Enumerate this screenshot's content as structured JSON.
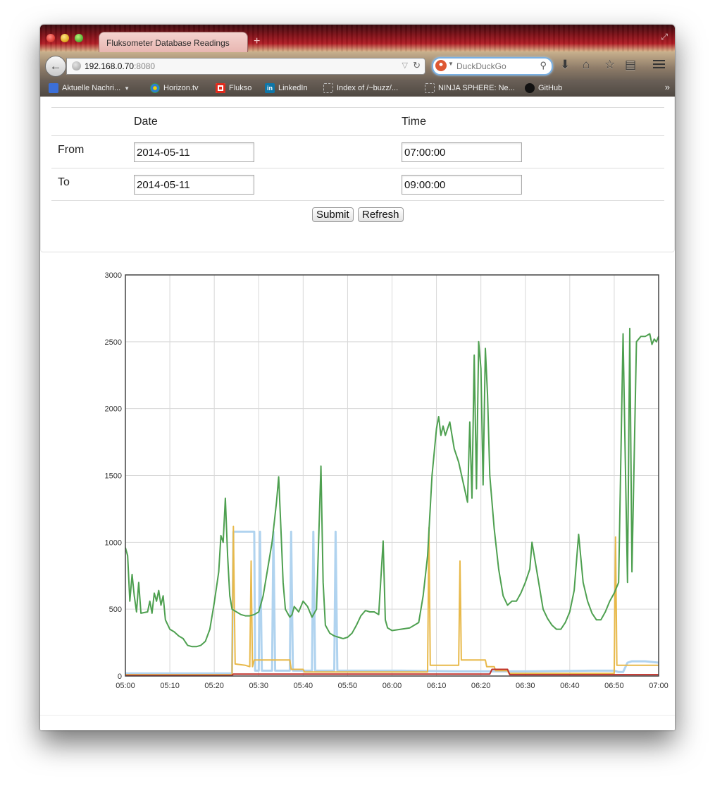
{
  "browser": {
    "tab_title": "Fluksometer Database Readings",
    "new_tab_label": "+",
    "url_host": "192.168.0.70",
    "url_port": ":8080",
    "search_placeholder": "DuckDuckGo",
    "bookmarks": [
      {
        "label": "Aktuelle Nachri...",
        "icon": "rss-icon"
      },
      {
        "label": "Horizon.tv",
        "icon": "horizon-icon"
      },
      {
        "label": "Flukso",
        "icon": "flukso-icon"
      },
      {
        "label": "LinkedIn",
        "icon": "linkedin-icon"
      },
      {
        "label": "Index of /~buzz/...",
        "icon": "page-icon"
      },
      {
        "label": "NINJA SPHERE: Ne...",
        "icon": "page-icon"
      },
      {
        "label": "GitHub",
        "icon": "github-icon"
      }
    ]
  },
  "form": {
    "col_date": "Date",
    "col_time": "Time",
    "from_label": "From",
    "to_label": "To",
    "from_date": "2014-05-11",
    "from_time": "07:00:00",
    "to_date": "2014-05-11",
    "to_time": "09:00:00",
    "submit_label": "Submit",
    "refresh_label": "Refresh"
  },
  "chart_data": {
    "type": "line",
    "title": "",
    "xlabel": "",
    "ylabel": "",
    "x_ticks": [
      "05:00",
      "05:10",
      "05:20",
      "05:30",
      "05:40",
      "05:50",
      "06:00",
      "06:10",
      "06:20",
      "06:30",
      "06:40",
      "06:50",
      "07:00"
    ],
    "y_ticks": [
      0,
      500,
      1000,
      1500,
      2000,
      2500,
      3000
    ],
    "xlim_minutes": [
      0,
      120
    ],
    "ylim": [
      0,
      3000
    ],
    "grid": true,
    "colors": {
      "green": "#4ea050",
      "blue": "#b0d3ef",
      "orange": "#e8b94a",
      "red": "#c0302a"
    },
    "series": [
      {
        "color_key": "green",
        "points": [
          [
            0,
            960
          ],
          [
            0.5,
            900
          ],
          [
            1,
            560
          ],
          [
            1.5,
            760
          ],
          [
            2,
            600
          ],
          [
            2.5,
            480
          ],
          [
            3,
            700
          ],
          [
            3.5,
            470
          ],
          [
            5,
            480
          ],
          [
            5.5,
            560
          ],
          [
            6,
            470
          ],
          [
            6.5,
            620
          ],
          [
            7,
            560
          ],
          [
            7.5,
            640
          ],
          [
            8,
            530
          ],
          [
            8.5,
            600
          ],
          [
            9,
            420
          ],
          [
            10,
            350
          ],
          [
            11,
            330
          ],
          [
            12,
            300
          ],
          [
            13,
            280
          ],
          [
            14,
            230
          ],
          [
            15,
            220
          ],
          [
            16,
            220
          ],
          [
            17,
            230
          ],
          [
            18,
            260
          ],
          [
            19,
            350
          ],
          [
            20,
            550
          ],
          [
            21,
            780
          ],
          [
            21.5,
            1050
          ],
          [
            22,
            1000
          ],
          [
            22.5,
            1330
          ],
          [
            23,
            900
          ],
          [
            23.5,
            600
          ],
          [
            24,
            500
          ],
          [
            25,
            480
          ],
          [
            26,
            460
          ],
          [
            27,
            450
          ],
          [
            28,
            450
          ],
          [
            29,
            460
          ],
          [
            30,
            480
          ],
          [
            31,
            600
          ],
          [
            32,
            800
          ],
          [
            33,
            1000
          ],
          [
            34,
            1300
          ],
          [
            34.5,
            1490
          ],
          [
            35,
            1100
          ],
          [
            35.5,
            700
          ],
          [
            36,
            500
          ],
          [
            37,
            440
          ],
          [
            37.5,
            460
          ],
          [
            38,
            520
          ],
          [
            39,
            480
          ],
          [
            40,
            560
          ],
          [
            41,
            520
          ],
          [
            42,
            440
          ],
          [
            43,
            500
          ],
          [
            44,
            1570
          ],
          [
            44.5,
            700
          ],
          [
            45,
            380
          ],
          [
            46,
            320
          ],
          [
            47,
            300
          ],
          [
            48,
            290
          ],
          [
            49,
            280
          ],
          [
            50,
            290
          ],
          [
            51,
            320
          ],
          [
            52,
            380
          ],
          [
            53,
            450
          ],
          [
            54,
            490
          ],
          [
            55,
            480
          ],
          [
            56,
            480
          ],
          [
            57,
            460
          ],
          [
            58,
            1010
          ],
          [
            58.5,
            420
          ],
          [
            59,
            360
          ],
          [
            60,
            340
          ],
          [
            62,
            350
          ],
          [
            64,
            360
          ],
          [
            66,
            400
          ],
          [
            67,
            600
          ],
          [
            68,
            900
          ],
          [
            69,
            1500
          ],
          [
            70,
            1850
          ],
          [
            70.5,
            1940
          ],
          [
            71,
            1800
          ],
          [
            71.5,
            1870
          ],
          [
            72,
            1800
          ],
          [
            73,
            1900
          ],
          [
            74,
            1700
          ],
          [
            75,
            1600
          ],
          [
            76,
            1450
          ],
          [
            77,
            1300
          ],
          [
            77.5,
            1900
          ],
          [
            78,
            1330
          ],
          [
            78.5,
            2400
          ],
          [
            79,
            1400
          ],
          [
            79.5,
            2500
          ],
          [
            80,
            2300
          ],
          [
            80.5,
            1430
          ],
          [
            81,
            2450
          ],
          [
            81.5,
            2100
          ],
          [
            82,
            1500
          ],
          [
            83,
            1100
          ],
          [
            84,
            800
          ],
          [
            85,
            600
          ],
          [
            86,
            530
          ],
          [
            87,
            560
          ],
          [
            88,
            560
          ],
          [
            89,
            620
          ],
          [
            90,
            700
          ],
          [
            91,
            800
          ],
          [
            91.5,
            1000
          ],
          [
            92,
            900
          ],
          [
            93,
            700
          ],
          [
            94,
            500
          ],
          [
            95,
            430
          ],
          [
            96,
            380
          ],
          [
            97,
            350
          ],
          [
            98,
            350
          ],
          [
            99,
            400
          ],
          [
            100,
            480
          ],
          [
            101,
            640
          ],
          [
            102,
            1060
          ],
          [
            103,
            700
          ],
          [
            104,
            560
          ],
          [
            105,
            470
          ],
          [
            106,
            420
          ],
          [
            107,
            420
          ],
          [
            108,
            480
          ],
          [
            109,
            560
          ],
          [
            110,
            620
          ],
          [
            111,
            700
          ],
          [
            112,
            2560
          ],
          [
            112.5,
            1600
          ],
          [
            113,
            700
          ],
          [
            113.5,
            2600
          ],
          [
            114,
            780
          ],
          [
            115,
            2500
          ],
          [
            116,
            2540
          ],
          [
            117,
            2540
          ],
          [
            118,
            2560
          ],
          [
            118.5,
            2480
          ],
          [
            119,
            2520
          ],
          [
            119.5,
            2500
          ],
          [
            120,
            2540
          ]
        ]
      },
      {
        "color_key": "blue",
        "points": [
          [
            0,
            20
          ],
          [
            24,
            20
          ],
          [
            24.3,
            1080
          ],
          [
            29,
            1080
          ],
          [
            29.2,
            40
          ],
          [
            30,
            40
          ],
          [
            30.3,
            1080
          ],
          [
            30.7,
            40
          ],
          [
            33,
            40
          ],
          [
            33.3,
            1080
          ],
          [
            33.7,
            40
          ],
          [
            37,
            40
          ],
          [
            37.3,
            1080
          ],
          [
            37.7,
            40
          ],
          [
            42,
            40
          ],
          [
            42.3,
            1080
          ],
          [
            42.7,
            40
          ],
          [
            47,
            40
          ],
          [
            47.3,
            1080
          ],
          [
            47.7,
            40
          ],
          [
            60,
            40
          ],
          [
            62,
            40
          ],
          [
            75,
            35
          ],
          [
            90,
            35
          ],
          [
            105,
            40
          ],
          [
            110,
            40
          ],
          [
            111,
            30
          ],
          [
            112,
            30
          ],
          [
            113,
            100
          ],
          [
            114,
            110
          ],
          [
            117,
            110
          ],
          [
            120,
            100
          ]
        ]
      },
      {
        "color_key": "orange",
        "points": [
          [
            0,
            10
          ],
          [
            24,
            10
          ],
          [
            24.3,
            1120
          ],
          [
            24.7,
            90
          ],
          [
            27,
            80
          ],
          [
            28,
            70
          ],
          [
            28.3,
            860
          ],
          [
            28.6,
            70
          ],
          [
            29,
            120
          ],
          [
            33,
            120
          ],
          [
            37,
            120
          ],
          [
            37.3,
            50
          ],
          [
            40,
            50
          ],
          [
            40.3,
            30
          ],
          [
            68,
            30
          ],
          [
            68.3,
            1110
          ],
          [
            68.6,
            80
          ],
          [
            75,
            80
          ],
          [
            75.3,
            860
          ],
          [
            75.6,
            120
          ],
          [
            81,
            120
          ],
          [
            81.3,
            70
          ],
          [
            83,
            70
          ],
          [
            83.3,
            40
          ],
          [
            86,
            40
          ],
          [
            86.3,
            20
          ],
          [
            110,
            20
          ],
          [
            110.3,
            1040
          ],
          [
            110.6,
            80
          ],
          [
            113,
            80
          ],
          [
            120,
            80
          ]
        ]
      },
      {
        "color_key": "red",
        "points": [
          [
            0,
            5
          ],
          [
            24,
            5
          ],
          [
            24.3,
            15
          ],
          [
            82,
            15
          ],
          [
            82.5,
            50
          ],
          [
            86,
            50
          ],
          [
            86.5,
            10
          ],
          [
            120,
            10
          ]
        ]
      }
    ]
  }
}
